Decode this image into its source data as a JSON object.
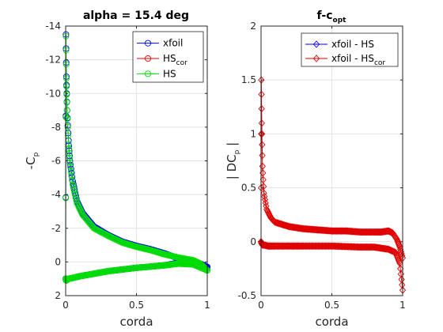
{
  "colors": {
    "xfoil": "#0000ff",
    "hs_cor": "#e00000",
    "hs": "#00e000",
    "grid": "#e3e3e3",
    "axis": "#262626"
  },
  "chart_data": [
    {
      "type": "scatter",
      "title": "alpha = 15.4 deg",
      "xlabel": "corda",
      "ylabel": {
        "base": "-C",
        "sub": "p"
      },
      "xlim": [
        0,
        1
      ],
      "ylim": [
        2,
        -14
      ],
      "y_axis_reversed": true,
      "grid": true,
      "xticks": [
        0,
        0.5,
        1
      ],
      "xtick_labels": [
        "0",
        "0.5",
        "1"
      ],
      "yticks": [
        -14,
        -12,
        -10,
        -8,
        -6,
        -4,
        -2,
        0,
        2
      ],
      "ytick_labels": [
        "-14",
        "-12",
        "-10",
        "-8",
        "-6",
        "-4",
        "-2",
        "0",
        "2"
      ],
      "legend_position": "top-right",
      "series": [
        {
          "name": {
            "base": "xfoil",
            "sub": ""
          },
          "color_key": "xfoil",
          "marker": "circle",
          "upper": {
            "x": [
              0,
              0.002,
              0.005,
              0.01,
              0.02,
              0.03,
              0.05,
              0.08,
              0.12,
              0.2,
              0.3,
              0.4,
              0.5,
              0.6,
              0.7,
              0.8,
              0.9,
              0.95,
              1.0
            ],
            "y": [
              1.0,
              -13.5,
              -11.0,
              -9.0,
              -7.2,
              -6.0,
              -4.8,
              -3.6,
              -2.9,
              -2.1,
              -1.6,
              -1.2,
              -0.95,
              -0.75,
              -0.5,
              -0.2,
              0.0,
              0.1,
              0.3
            ]
          },
          "lower": {
            "x": [
              0.0,
              0.005,
              0.01,
              0.02,
              0.05,
              0.1,
              0.2,
              0.3,
              0.5,
              0.7,
              0.8,
              0.9,
              1.0
            ],
            "y": [
              1.0,
              1.1,
              1.05,
              1.0,
              0.95,
              0.85,
              0.7,
              0.55,
              0.35,
              0.2,
              0.05,
              0.1,
              0.3
            ]
          }
        },
        {
          "name": {
            "base": "HS",
            "sub": "cor"
          },
          "color_key": "hs_cor",
          "marker": "circle",
          "upper": {
            "x": [],
            "y": []
          },
          "lower": {
            "x": [],
            "y": []
          }
        },
        {
          "name": {
            "base": "HS",
            "sub": ""
          },
          "color_key": "hs",
          "marker": "circle",
          "upper": {
            "x": [
              0,
              0.002,
              0.005,
              0.01,
              0.02,
              0.03,
              0.05,
              0.08,
              0.12,
              0.2,
              0.3,
              0.4,
              0.5,
              0.6,
              0.7,
              0.8,
              0.9,
              0.95,
              1.0
            ],
            "y": [
              1.0,
              -13.4,
              -10.9,
              -9.0,
              -7.0,
              -5.9,
              -4.6,
              -3.5,
              -2.8,
              -2.0,
              -1.55,
              -1.15,
              -0.9,
              -0.7,
              -0.45,
              -0.25,
              -0.1,
              0.1,
              0.5
            ]
          },
          "lower": {
            "x": [
              0.0,
              0.005,
              0.01,
              0.02,
              0.05,
              0.1,
              0.2,
              0.3,
              0.5,
              0.7,
              0.8,
              0.9,
              1.0
            ],
            "y": [
              1.0,
              1.1,
              1.05,
              1.0,
              0.95,
              0.85,
              0.7,
              0.55,
              0.35,
              0.2,
              0.1,
              0.15,
              0.5
            ]
          }
        }
      ]
    },
    {
      "type": "scatter",
      "title": {
        "base": "f-c",
        "sub": "opt"
      },
      "xlabel": "corda",
      "ylabel": {
        "base": "| DC",
        "sub": "p",
        "after": " |"
      },
      "xlim": [
        0,
        1
      ],
      "ylim": [
        -0.5,
        2
      ],
      "grid": true,
      "xticks": [
        0,
        0.5,
        1
      ],
      "xtick_labels": [
        "0",
        "0.5",
        "1"
      ],
      "yticks": [
        -0.5,
        0,
        0.5,
        1,
        1.5,
        2
      ],
      "ytick_labels": [
        "-0.5",
        "0",
        "0.5",
        "1",
        "1.5",
        "2"
      ],
      "legend_position": "top-right",
      "series": [
        {
          "name": {
            "base": "xfoil - HS",
            "sub": ""
          },
          "color_key": "xfoil",
          "marker": "diamond",
          "upper": {
            "x": [],
            "y": []
          },
          "lower": {
            "x": [],
            "y": []
          }
        },
        {
          "name": {
            "base": "xfoil - HS",
            "sub": "cor"
          },
          "color_key": "hs_cor",
          "marker": "diamond",
          "upper": {
            "x": [
              0,
              0.002,
              0.005,
              0.01,
              0.02,
              0.04,
              0.07,
              0.1,
              0.2,
              0.3,
              0.4,
              0.5,
              0.6,
              0.7,
              0.8,
              0.85,
              0.9,
              0.93,
              0.96,
              0.98,
              1.0
            ],
            "y": [
              0.0,
              1.5,
              1.1,
              0.7,
              0.45,
              0.3,
              0.22,
              0.18,
              0.14,
              0.12,
              0.11,
              0.1,
              0.1,
              0.09,
              0.09,
              0.09,
              0.1,
              0.08,
              0.02,
              -0.05,
              -0.15
            ]
          },
          "lower": {
            "x": [
              0,
              0.005,
              0.01,
              0.02,
              0.05,
              0.1,
              0.2,
              0.3,
              0.5,
              0.7,
              0.8,
              0.9,
              0.95,
              0.98,
              1.0
            ],
            "y": [
              0.0,
              -0.02,
              -0.03,
              -0.03,
              -0.04,
              -0.04,
              -0.04,
              -0.04,
              -0.04,
              -0.05,
              -0.05,
              -0.07,
              -0.1,
              -0.2,
              -0.45
            ]
          }
        }
      ]
    }
  ]
}
